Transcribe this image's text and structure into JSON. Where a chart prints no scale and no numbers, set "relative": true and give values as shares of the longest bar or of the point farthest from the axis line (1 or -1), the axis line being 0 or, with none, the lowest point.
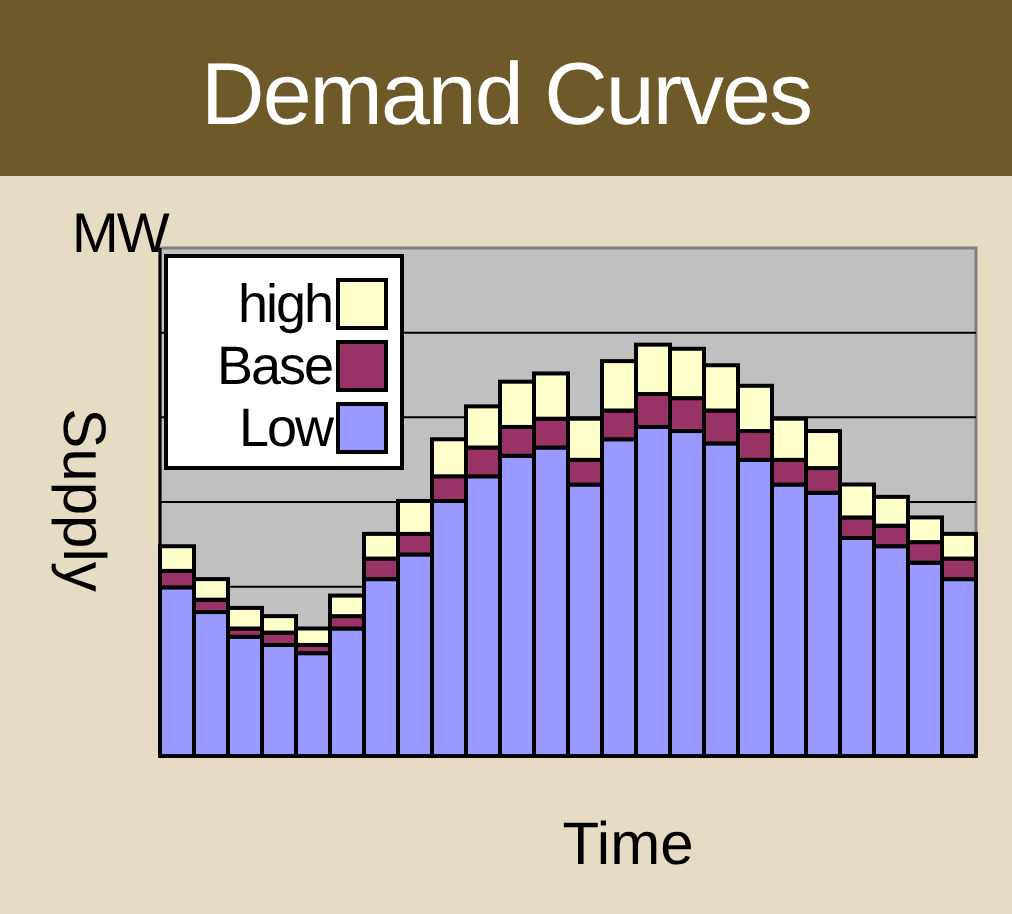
{
  "chart_data": {
    "type": "bar",
    "title": "Demand Curves",
    "xlabel": "Time",
    "ylabel": "Supply",
    "annotations": [
      "MW"
    ],
    "relative": true,
    "stacked": true,
    "grid": true,
    "legend": "top left",
    "categories": [
      null,
      null,
      null,
      null,
      null,
      null,
      null,
      null,
      null,
      null,
      null,
      null,
      null,
      null,
      null,
      null,
      null,
      null,
      null,
      null,
      null,
      null,
      null,
      null
    ],
    "series": [
      {
        "name": "Low",
        "color": "#9999ff",
        "values": [
          0.41,
          0.35,
          0.29,
          0.27,
          0.25,
          0.31,
          0.43,
          0.49,
          0.62,
          0.68,
          0.73,
          0.75,
          0.66,
          0.77,
          0.8,
          0.79,
          0.76,
          0.72,
          0.66,
          0.64,
          0.53,
          0.51,
          0.47,
          0.43
        ]
      },
      {
        "name": "Base",
        "color": "#993366",
        "values": [
          0.04,
          0.03,
          0.02,
          0.03,
          0.02,
          0.03,
          0.05,
          0.05,
          0.06,
          0.07,
          0.07,
          0.07,
          0.06,
          0.07,
          0.08,
          0.08,
          0.08,
          0.07,
          0.06,
          0.06,
          0.05,
          0.05,
          0.05,
          0.05
        ]
      },
      {
        "name": "high",
        "color": "#ffffcc",
        "values": [
          0.06,
          0.05,
          0.05,
          0.04,
          0.04,
          0.05,
          0.06,
          0.08,
          0.09,
          0.1,
          0.11,
          0.11,
          0.1,
          0.12,
          0.12,
          0.12,
          0.11,
          0.11,
          0.1,
          0.09,
          0.08,
          0.07,
          0.06,
          0.06
        ]
      }
    ]
  }
}
